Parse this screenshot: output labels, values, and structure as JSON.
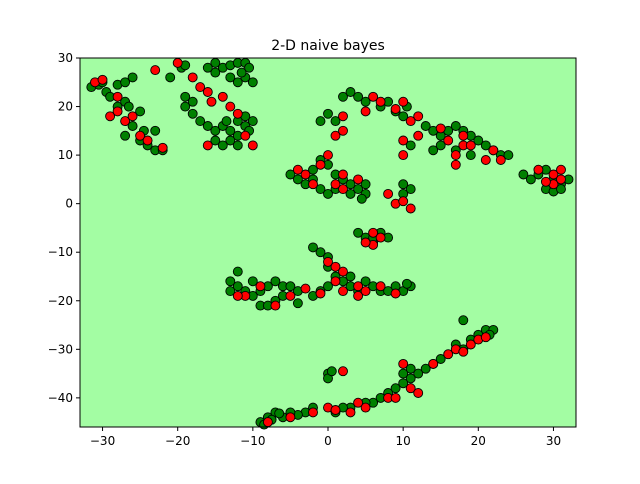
{
  "chart_data": {
    "type": "scatter",
    "title": "2-D naive bayes",
    "xlabel": "",
    "ylabel": "",
    "xlim": [
      -33,
      33
    ],
    "ylim": [
      -46,
      30
    ],
    "xticks": [
      -30,
      -20,
      -10,
      0,
      10,
      20,
      30
    ],
    "yticks": [
      -40,
      -30,
      -20,
      -10,
      0,
      10,
      20,
      30
    ],
    "xtick_labels": [
      "−30",
      "−20",
      "−10",
      "0",
      "10",
      "20",
      "30"
    ],
    "ytick_labels": [
      "−40",
      "−30",
      "−20",
      "−10",
      "0",
      "10",
      "20",
      "30"
    ],
    "grid": false,
    "legend": "none",
    "background_color": "#a3fda3",
    "series": [
      {
        "color": "#008000",
        "points": [
          [
            -31.5,
            24
          ],
          [
            -30.5,
            24.5
          ],
          [
            -29.5,
            23
          ],
          [
            -29,
            22
          ],
          [
            -28,
            24.5
          ],
          [
            -27,
            25
          ],
          [
            -26,
            26
          ],
          [
            -27,
            21
          ],
          [
            -26.5,
            20
          ],
          [
            -25,
            19
          ],
          [
            -26,
            16
          ],
          [
            -27,
            14
          ],
          [
            -24,
            12
          ],
          [
            -23,
            11
          ],
          [
            -22,
            11
          ],
          [
            -25,
            13
          ],
          [
            -24.5,
            15
          ],
          [
            -23,
            15
          ],
          [
            -28,
            20
          ],
          [
            -30,
            25
          ],
          [
            -21,
            26
          ],
          [
            -19.5,
            28
          ],
          [
            -19,
            28.5
          ],
          [
            -19,
            22
          ],
          [
            -18,
            21
          ],
          [
            -19,
            20
          ],
          [
            -18,
            18.5
          ],
          [
            -15,
            29
          ],
          [
            -14,
            28
          ],
          [
            -13,
            28.5
          ],
          [
            -12,
            29
          ],
          [
            -11,
            29
          ],
          [
            -10.5,
            28
          ],
          [
            -11,
            26
          ],
          [
            -12,
            25
          ],
          [
            -13,
            26
          ],
          [
            -15,
            27
          ],
          [
            -16,
            28
          ],
          [
            -10,
            25
          ],
          [
            -11.5,
            27
          ],
          [
            -17,
            17
          ],
          [
            -16,
            16
          ],
          [
            -15,
            15
          ],
          [
            -14,
            16
          ],
          [
            -13,
            15
          ],
          [
            -12,
            14
          ],
          [
            -13,
            13
          ],
          [
            -14,
            12
          ],
          [
            -15,
            13
          ],
          [
            -12,
            17
          ],
          [
            -11,
            18
          ],
          [
            -10,
            17
          ],
          [
            -11,
            16
          ],
          [
            -12,
            12
          ],
          [
            -10.5,
            15
          ],
          [
            -13.5,
            17
          ],
          [
            -5,
            6
          ],
          [
            -4,
            5
          ],
          [
            -3,
            4
          ],
          [
            -2,
            5
          ],
          [
            -1,
            3
          ],
          [
            0,
            2
          ],
          [
            1,
            3
          ],
          [
            -2,
            7
          ],
          [
            -1,
            9
          ],
          [
            0,
            8
          ],
          [
            1,
            6
          ],
          [
            2,
            5
          ],
          [
            3,
            4
          ],
          [
            4,
            3
          ],
          [
            5,
            2
          ],
          [
            4.5,
            1
          ],
          [
            3,
            2
          ],
          [
            5,
            4
          ],
          [
            -1,
            17
          ],
          [
            0,
            18.5
          ],
          [
            1,
            17
          ],
          [
            2,
            22
          ],
          [
            3,
            23
          ],
          [
            4,
            22
          ],
          [
            5,
            21
          ],
          [
            7,
            20
          ],
          [
            8,
            21
          ],
          [
            9,
            19
          ],
          [
            10,
            18
          ],
          [
            10.5,
            20
          ],
          [
            10,
            4
          ],
          [
            11,
            3
          ],
          [
            10,
            2
          ],
          [
            11,
            12
          ],
          [
            13,
            16
          ],
          [
            14,
            15
          ],
          [
            15,
            14
          ],
          [
            16,
            15
          ],
          [
            17,
            16
          ],
          [
            18,
            15
          ],
          [
            19,
            14
          ],
          [
            20,
            13
          ],
          [
            21,
            12
          ],
          [
            22,
            11
          ],
          [
            23,
            10
          ],
          [
            24,
            10
          ],
          [
            15,
            12
          ],
          [
            14,
            11
          ],
          [
            17,
            11
          ],
          [
            19,
            10
          ],
          [
            26,
            6
          ],
          [
            27,
            5
          ],
          [
            28,
            6
          ],
          [
            29,
            7
          ],
          [
            30,
            5
          ],
          [
            31,
            4
          ],
          [
            32,
            5
          ],
          [
            29,
            3
          ],
          [
            30,
            2.5
          ],
          [
            31,
            3
          ],
          [
            4,
            -6
          ],
          [
            5,
            -7
          ],
          [
            6,
            -8
          ],
          [
            7,
            -6
          ],
          [
            8,
            -7
          ],
          [
            6,
            -7
          ],
          [
            -2,
            -9
          ],
          [
            -1,
            -10
          ],
          [
            0,
            -11
          ],
          [
            0,
            -13
          ],
          [
            1,
            -15
          ],
          [
            2,
            -16
          ],
          [
            3,
            -17
          ],
          [
            4,
            -18
          ],
          [
            5,
            -16
          ],
          [
            6,
            -17
          ],
          [
            7,
            -18
          ],
          [
            8,
            -18
          ],
          [
            9,
            -17
          ],
          [
            10,
            -18
          ],
          [
            11,
            -17
          ],
          [
            10.5,
            -16.5
          ],
          [
            -1,
            -18
          ],
          [
            0,
            -17
          ],
          [
            -2,
            -19
          ],
          [
            3,
            -15
          ],
          [
            -13,
            -16
          ],
          [
            -12,
            -17
          ],
          [
            -11,
            -18
          ],
          [
            -10,
            -19
          ],
          [
            -9,
            -18
          ],
          [
            -8,
            -17
          ],
          [
            -7,
            -16
          ],
          [
            -6,
            -17
          ],
          [
            -5,
            -17
          ],
          [
            -4,
            -18
          ],
          [
            -9,
            -21
          ],
          [
            -8,
            -21
          ],
          [
            -7,
            -20
          ],
          [
            -4,
            -20.5
          ],
          [
            -12,
            -14
          ],
          [
            -13,
            -18
          ],
          [
            -10,
            -16
          ],
          [
            -6,
            -19
          ],
          [
            18,
            -24
          ],
          [
            17,
            -29
          ],
          [
            18,
            -30
          ],
          [
            19,
            -28
          ],
          [
            20,
            -27
          ],
          [
            21,
            -26
          ],
          [
            22,
            -26
          ],
          [
            21.5,
            -27
          ],
          [
            15,
            -32
          ],
          [
            14,
            -33
          ],
          [
            13,
            -34
          ],
          [
            12,
            -35
          ],
          [
            11,
            -36
          ],
          [
            10,
            -37
          ],
          [
            11,
            -34
          ],
          [
            10,
            -35
          ],
          [
            8,
            -39
          ],
          [
            9,
            -38
          ],
          [
            7,
            -40
          ],
          [
            6,
            -41
          ],
          [
            0,
            -35
          ],
          [
            0,
            -36
          ],
          [
            0.5,
            -34.5
          ],
          [
            5,
            -41
          ],
          [
            3,
            -42
          ],
          [
            2,
            -42
          ],
          [
            1,
            -43
          ],
          [
            -2,
            -42
          ],
          [
            -3,
            -43
          ],
          [
            -4,
            -43.5
          ],
          [
            -5,
            -43
          ],
          [
            -6,
            -44
          ],
          [
            -7,
            -43
          ],
          [
            -8,
            -44
          ],
          [
            -9,
            -45
          ],
          [
            -8.5,
            -45.5
          ],
          [
            -7.5,
            -44.5
          ],
          [
            -6.5,
            -43.2
          ]
        ]
      },
      {
        "color": "#ff0000",
        "points": [
          [
            -31,
            25
          ],
          [
            -30,
            25.5
          ],
          [
            -29,
            18
          ],
          [
            -28,
            19
          ],
          [
            -27,
            17
          ],
          [
            -26,
            18
          ],
          [
            -25,
            14
          ],
          [
            -24,
            13
          ],
          [
            -22,
            11.5
          ],
          [
            -28,
            22
          ],
          [
            -23,
            27.5
          ],
          [
            -20,
            29
          ],
          [
            -18,
            26
          ],
          [
            -17,
            24
          ],
          [
            -16,
            23
          ],
          [
            -14,
            22
          ],
          [
            -15.5,
            21
          ],
          [
            -16,
            12
          ],
          [
            -11,
            14
          ],
          [
            -13,
            20
          ],
          [
            -12,
            18.5
          ],
          [
            -10,
            12
          ],
          [
            -4,
            7
          ],
          [
            -3,
            6
          ],
          [
            -2,
            4
          ],
          [
            -1,
            8
          ],
          [
            0,
            10
          ],
          [
            1,
            4
          ],
          [
            2,
            6
          ],
          [
            2,
            3
          ],
          [
            4,
            5
          ],
          [
            8,
            2
          ],
          [
            9,
            0
          ],
          [
            10,
            0.5
          ],
          [
            11,
            -1
          ],
          [
            1,
            14
          ],
          [
            2,
            15
          ],
          [
            2,
            18
          ],
          [
            5,
            19
          ],
          [
            6,
            22
          ],
          [
            7,
            21
          ],
          [
            9,
            19.5
          ],
          [
            10,
            21
          ],
          [
            11,
            17
          ],
          [
            10,
            10
          ],
          [
            10,
            13
          ],
          [
            12,
            18
          ],
          [
            12,
            14
          ],
          [
            15,
            15.5
          ],
          [
            16,
            13
          ],
          [
            17,
            10
          ],
          [
            17,
            8
          ],
          [
            18,
            12
          ],
          [
            18,
            14
          ],
          [
            19,
            12
          ],
          [
            21,
            9
          ],
          [
            22,
            11
          ],
          [
            23,
            9
          ],
          [
            28,
            7
          ],
          [
            30,
            6
          ],
          [
            31,
            7
          ],
          [
            30,
            4
          ],
          [
            31,
            5
          ],
          [
            29,
            4.5
          ],
          [
            6,
            -6
          ],
          [
            6,
            -8.5
          ],
          [
            7,
            -7
          ],
          [
            5,
            -8
          ],
          [
            0,
            -12
          ],
          [
            1,
            -13
          ],
          [
            2,
            -14
          ],
          [
            1,
            -16
          ],
          [
            2,
            -18
          ],
          [
            4,
            -17
          ],
          [
            4,
            -19
          ],
          [
            5,
            -18
          ],
          [
            7,
            -17
          ],
          [
            9,
            -18.5
          ],
          [
            -1,
            -18.5
          ],
          [
            -3,
            -17.5
          ],
          [
            -5,
            -19
          ],
          [
            -7,
            -21
          ],
          [
            -9,
            -17
          ],
          [
            -11,
            -19
          ],
          [
            -12,
            -19
          ],
          [
            10,
            -33
          ],
          [
            11,
            -38
          ],
          [
            12,
            -39
          ],
          [
            14,
            -33
          ],
          [
            16,
            -31
          ],
          [
            17,
            -30
          ],
          [
            18,
            -30.5
          ],
          [
            19,
            -29
          ],
          [
            20,
            -28
          ],
          [
            21,
            -27.5
          ],
          [
            8,
            -40
          ],
          [
            9,
            -40
          ],
          [
            2,
            -34.5
          ],
          [
            0,
            -42
          ],
          [
            1,
            -42.5
          ],
          [
            5,
            -42
          ],
          [
            4,
            -41
          ],
          [
            3,
            -43
          ],
          [
            -2,
            -43
          ],
          [
            -5,
            -44
          ],
          [
            -8,
            -45
          ]
        ]
      }
    ]
  }
}
